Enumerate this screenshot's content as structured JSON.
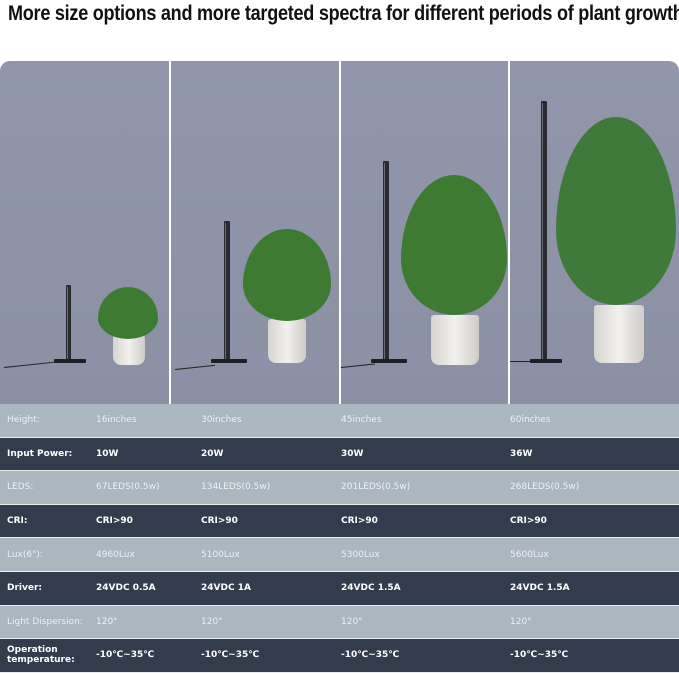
{
  "title": "More size options and more targeted spectra for different periods of plant growth.",
  "colors": {
    "panel_bg": "#8e93a8",
    "row_light": "#aab6c0",
    "row_dark": "#323c4c"
  },
  "table": {
    "rows": [
      {
        "label": "Height:",
        "values": [
          "16inches",
          "30inches",
          "45inches",
          "60inches"
        ]
      },
      {
        "label": "Input Power:",
        "values": [
          "10W",
          "20W",
          "30W",
          "36W"
        ]
      },
      {
        "label": "LEDS:",
        "values": [
          "67LEDS(0.5w)",
          "134LEDS(0.5w)",
          "201LEDS(0.5w)",
          "268LEDS(0.5w)"
        ]
      },
      {
        "label": "CRI:",
        "values": [
          "CRI>90",
          "CRI>90",
          "CRI>90",
          "CRI>90"
        ]
      },
      {
        "label": "Lux(6\"):",
        "values": [
          "4960Lux",
          "5100Lux",
          "5300Lux",
          "5600Lux"
        ]
      },
      {
        "label": "Driver:",
        "values": [
          "24VDC 0.5A",
          "24VDC 1A",
          "24VDC 1.5A",
          "24VDC 1.5A"
        ]
      },
      {
        "label": "Light Dispersion:",
        "values": [
          "120°",
          "120°",
          "120°",
          "120°"
        ]
      },
      {
        "label": "Operation temperature:",
        "values": [
          "-10℃~35℃",
          "-10℃~35℃",
          "-10℃~35℃",
          "-10℃~35℃"
        ]
      }
    ]
  }
}
